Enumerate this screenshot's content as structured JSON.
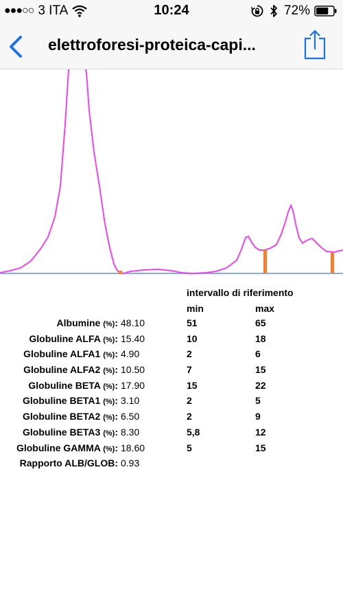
{
  "status_bar": {
    "signal": "●●●○○",
    "carrier": "3 ITA",
    "time": "10:24",
    "battery_percent": "72%",
    "battery_level": 0.72
  },
  "nav": {
    "title": "elettroforesi-proteica-capi..."
  },
  "colors": {
    "accent": "#1a73e8",
    "curve": "#ee44ee",
    "baseline": "#8aa8ee",
    "marker": "#f47f2f"
  },
  "table": {
    "reference_header": "intervallo di riferimento",
    "min_header": "min",
    "max_header": "max",
    "rows": [
      {
        "label": "Albumine",
        "unit": "(%)",
        "value": "48.10",
        "min": "51",
        "max": "65"
      },
      {
        "label": "Globuline ALFA",
        "unit": "(%)",
        "value": "15.40",
        "min": "10",
        "max": "18"
      },
      {
        "label": "Globuline ALFA1",
        "unit": "(%)",
        "value": "4.90",
        "min": "2",
        "max": "6"
      },
      {
        "label": "Globuline ALFA2",
        "unit": "(%)",
        "value": "10.50",
        "min": "7",
        "max": "15"
      },
      {
        "label": "Globuline BETA",
        "unit": "(%)",
        "value": "17.90",
        "min": "15",
        "max": "22"
      },
      {
        "label": "Globuline BETA1",
        "unit": "(%)",
        "value": "3.10",
        "min": "2",
        "max": "5"
      },
      {
        "label": "Globuline BETA2",
        "unit": "(%)",
        "value": "6.50",
        "min": "2",
        "max": "9"
      },
      {
        "label": "Globuline BETA3",
        "unit": "(%)",
        "value": "8.30",
        "min": "5,8",
        "max": "12"
      },
      {
        "label": "Globuline GAMMA",
        "unit": "(%)",
        "value": "18.60",
        "min": "5",
        "max": "15"
      },
      {
        "label": "Rapporto ALB/GLOB",
        "unit": "",
        "value": "0.93",
        "min": "",
        "max": ""
      }
    ]
  }
}
